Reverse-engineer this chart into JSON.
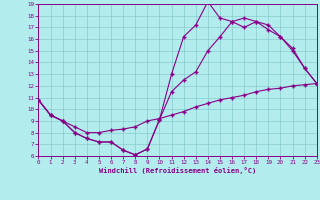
{
  "background_color": "#b3ecec",
  "line_color": "#880088",
  "grid_color": "#88cccc",
  "xlabel": "Windchill (Refroidissement éolien,°C)",
  "xlim": [
    0,
    23
  ],
  "ylim": [
    6,
    19
  ],
  "yticks": [
    6,
    7,
    8,
    9,
    10,
    11,
    12,
    13,
    14,
    15,
    16,
    17,
    18,
    19
  ],
  "xticks": [
    0,
    1,
    2,
    3,
    4,
    5,
    6,
    7,
    8,
    9,
    10,
    11,
    12,
    13,
    14,
    15,
    16,
    17,
    18,
    19,
    20,
    21,
    22,
    23
  ],
  "curve1_x": [
    0,
    1,
    2,
    3,
    4,
    5,
    6,
    7,
    8,
    9,
    10,
    11,
    12,
    13,
    14,
    15,
    16,
    17,
    18,
    19,
    20,
    21,
    22,
    23
  ],
  "curve1_y": [
    10.8,
    9.5,
    9.0,
    8.0,
    7.5,
    7.2,
    7.2,
    6.5,
    6.1,
    6.6,
    9.1,
    13.0,
    16.2,
    17.2,
    19.2,
    17.8,
    17.5,
    17.0,
    17.5,
    16.8,
    16.2,
    15.0,
    13.5,
    12.2
  ],
  "curve2_x": [
    0,
    1,
    2,
    3,
    4,
    5,
    6,
    7,
    8,
    9,
    10,
    11,
    12,
    13,
    14,
    15,
    16,
    17,
    18,
    19,
    20,
    21,
    22,
    23
  ],
  "curve2_y": [
    10.8,
    9.5,
    9.0,
    8.0,
    7.5,
    7.2,
    7.2,
    6.5,
    6.1,
    6.6,
    9.1,
    11.5,
    12.5,
    13.2,
    15.0,
    16.2,
    17.5,
    17.8,
    17.5,
    17.2,
    16.2,
    15.2,
    13.5,
    12.2
  ],
  "curve3_x": [
    0,
    1,
    2,
    3,
    4,
    5,
    6,
    7,
    8,
    9,
    10,
    11,
    12,
    13,
    14,
    15,
    16,
    17,
    18,
    19,
    20,
    21,
    22,
    23
  ],
  "curve3_y": [
    10.8,
    9.5,
    9.0,
    8.5,
    8.0,
    8.0,
    8.2,
    8.3,
    8.5,
    9.0,
    9.2,
    9.5,
    9.8,
    10.2,
    10.5,
    10.8,
    11.0,
    11.2,
    11.5,
    11.7,
    11.8,
    12.0,
    12.1,
    12.2
  ]
}
